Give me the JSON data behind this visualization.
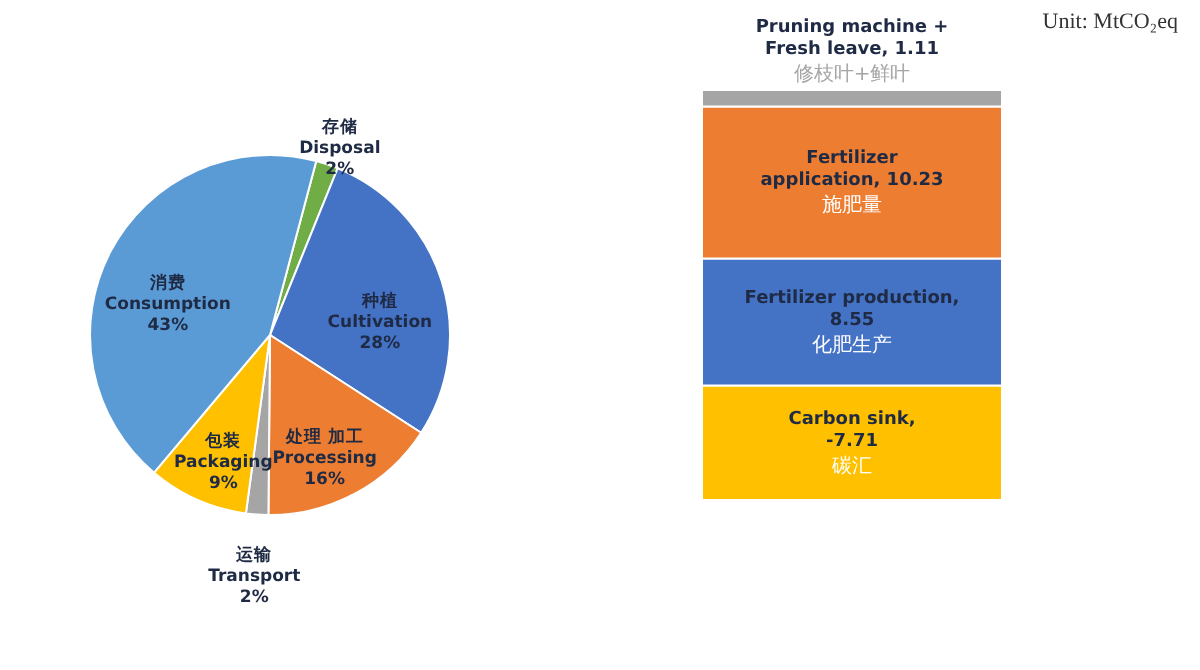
{
  "chart_data": [
    {
      "type": "pie",
      "categories": [
        "存储\nDisposal",
        "种植\nCultivation",
        "处理 加工\nProcessing",
        "运输\nTransport",
        "包装\nPackaging",
        "消费\nConsumption"
      ],
      "values": [
        2,
        28,
        16,
        2,
        9,
        43
      ],
      "value_labels": [
        "2%",
        "28%",
        "16%",
        "2%",
        "9%",
        "43%"
      ],
      "colors": [
        "#70ad47",
        "#4472c4",
        "#ed7d31",
        "#a5a5a5",
        "#ffc000",
        "#5b9bd5"
      ]
    },
    {
      "type": "other",
      "categories": [
        null
      ],
      "annotations": [
        "Unit: MtCO₂eq"
      ],
      "series": [
        {
          "name": "碳汇",
          "color": "#ffc000",
          "values": [
            -7.71
          ],
          "value_labels": [
            "Carbon sink,\n-7.71"
          ]
        },
        {
          "name": "化肥生产",
          "color": "#4472c4",
          "values": [
            8.55
          ],
          "value_labels": [
            "Fertilizer production,\n8.55"
          ]
        },
        {
          "name": "施肥量",
          "color": "#ed7d31",
          "values": [
            10.23
          ],
          "value_labels": [
            "Fertilizer\napplication, 10.23"
          ]
        },
        {
          "name": "修枝叶+鲜叶",
          "color": "#a5a5a5",
          "values": [
            1.11
          ],
          "value_labels": [
            "Pruning machine +\nFresh leave, 1.11"
          ]
        }
      ]
    }
  ]
}
